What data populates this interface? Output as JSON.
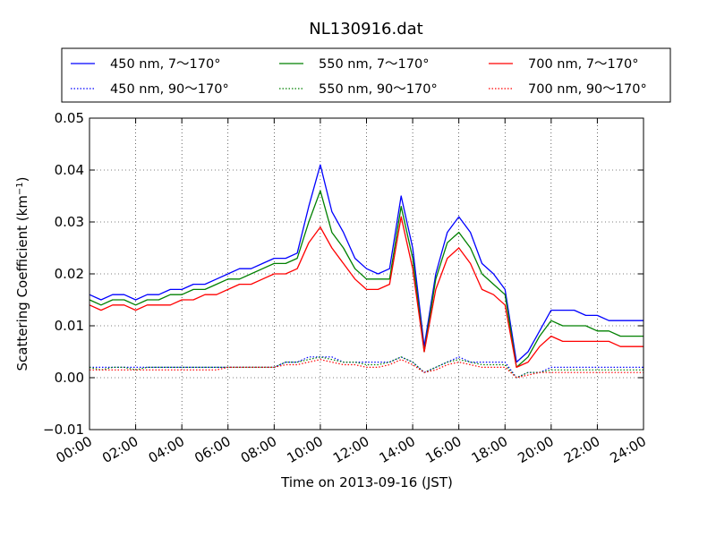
{
  "chart_data": {
    "type": "line",
    "title": "NL130916.dat",
    "xlabel": "Time on 2013-09-16 (JST)",
    "ylabel": "Scattering Coefficient (km",
    "ylabel_sup": "−1",
    "ylabel_tail": ")",
    "xlim": [
      "00:00",
      "24:00"
    ],
    "ylim": [
      -0.01,
      0.05
    ],
    "grid": true,
    "legend_position": "top, outside plot, 3 columns",
    "x_ticks": [
      "00:00",
      "02:00",
      "04:00",
      "06:00",
      "08:00",
      "10:00",
      "12:00",
      "14:00",
      "16:00",
      "18:00",
      "20:00",
      "22:00",
      "24:00"
    ],
    "y_ticks": [
      "−0.01",
      "0.00",
      "0.01",
      "0.02",
      "0.03",
      "0.04",
      "0.05"
    ],
    "x": [
      "00:00",
      "00:30",
      "01:00",
      "01:30",
      "02:00",
      "02:30",
      "03:00",
      "03:30",
      "04:00",
      "04:30",
      "05:00",
      "05:30",
      "06:00",
      "06:30",
      "07:00",
      "07:30",
      "08:00",
      "08:30",
      "09:00",
      "09:30",
      "10:00",
      "10:30",
      "11:00",
      "11:30",
      "12:00",
      "12:30",
      "13:00",
      "13:30",
      "14:00",
      "14:30",
      "15:00",
      "15:30",
      "16:00",
      "16:30",
      "17:00",
      "17:30",
      "18:00",
      "18:30",
      "19:00",
      "19:30",
      "20:00",
      "20:30",
      "21:00",
      "21:30",
      "22:00",
      "22:30",
      "23:00",
      "23:30",
      "24:00"
    ],
    "series": [
      {
        "name": "450 nm, 7～170°",
        "color": "#0000ff",
        "style": "solid",
        "values": [
          0.016,
          0.015,
          0.016,
          0.016,
          0.015,
          0.016,
          0.016,
          0.017,
          0.017,
          0.018,
          0.018,
          0.019,
          0.02,
          0.021,
          0.021,
          0.022,
          0.023,
          0.023,
          0.024,
          0.033,
          0.041,
          0.032,
          0.028,
          0.023,
          0.021,
          0.02,
          0.021,
          0.035,
          0.025,
          0.006,
          0.02,
          0.028,
          0.031,
          0.028,
          0.022,
          0.02,
          0.017,
          0.003,
          0.005,
          0.009,
          0.013,
          0.013,
          0.013,
          0.012,
          0.012,
          0.011,
          0.011,
          0.011,
          0.011
        ]
      },
      {
        "name": "550 nm, 7～170°",
        "color": "#008000",
        "style": "solid",
        "values": [
          0.015,
          0.014,
          0.015,
          0.015,
          0.014,
          0.015,
          0.015,
          0.016,
          0.016,
          0.017,
          0.017,
          0.018,
          0.019,
          0.019,
          0.02,
          0.021,
          0.022,
          0.022,
          0.023,
          0.03,
          0.036,
          0.028,
          0.025,
          0.021,
          0.019,
          0.019,
          0.019,
          0.033,
          0.023,
          0.005,
          0.019,
          0.026,
          0.028,
          0.025,
          0.02,
          0.018,
          0.016,
          0.002,
          0.004,
          0.008,
          0.011,
          0.01,
          0.01,
          0.01,
          0.009,
          0.009,
          0.008,
          0.008,
          0.008
        ]
      },
      {
        "name": "700 nm, 7～170°",
        "color": "#ff0000",
        "style": "solid",
        "values": [
          0.014,
          0.013,
          0.014,
          0.014,
          0.013,
          0.014,
          0.014,
          0.014,
          0.015,
          0.015,
          0.016,
          0.016,
          0.017,
          0.018,
          0.018,
          0.019,
          0.02,
          0.02,
          0.021,
          0.026,
          0.029,
          0.025,
          0.022,
          0.019,
          0.017,
          0.017,
          0.018,
          0.031,
          0.021,
          0.005,
          0.017,
          0.023,
          0.025,
          0.022,
          0.017,
          0.016,
          0.014,
          0.002,
          0.003,
          0.006,
          0.008,
          0.007,
          0.007,
          0.007,
          0.007,
          0.007,
          0.006,
          0.006,
          0.006
        ]
      },
      {
        "name": "450 nm, 90～170°",
        "color": "#0000ff",
        "style": "dotted",
        "values": [
          0.002,
          0.002,
          0.002,
          0.002,
          0.002,
          0.002,
          0.002,
          0.002,
          0.002,
          0.002,
          0.002,
          0.002,
          0.002,
          0.002,
          0.002,
          0.002,
          0.002,
          0.003,
          0.003,
          0.004,
          0.004,
          0.004,
          0.003,
          0.003,
          0.003,
          0.003,
          0.003,
          0.004,
          0.003,
          0.001,
          0.002,
          0.003,
          0.004,
          0.003,
          0.003,
          0.003,
          0.003,
          0.0,
          0.001,
          0.001,
          0.002,
          0.002,
          0.002,
          0.002,
          0.002,
          0.002,
          0.002,
          0.002,
          0.002
        ]
      },
      {
        "name": "550 nm, 90～170°",
        "color": "#008000",
        "style": "dotted",
        "values": [
          0.002,
          0.0015,
          0.002,
          0.002,
          0.0015,
          0.002,
          0.002,
          0.002,
          0.002,
          0.002,
          0.002,
          0.002,
          0.002,
          0.002,
          0.002,
          0.002,
          0.002,
          0.003,
          0.003,
          0.0035,
          0.004,
          0.0035,
          0.003,
          0.003,
          0.0025,
          0.0025,
          0.003,
          0.004,
          0.003,
          0.001,
          0.002,
          0.003,
          0.0035,
          0.003,
          0.0025,
          0.0025,
          0.0025,
          0.0,
          0.001,
          0.001,
          0.0015,
          0.0015,
          0.0015,
          0.0015,
          0.0015,
          0.0015,
          0.0015,
          0.0015,
          0.0015
        ]
      },
      {
        "name": "700 nm, 90～170°",
        "color": "#ff0000",
        "style": "dotted",
        "values": [
          0.0015,
          0.0015,
          0.0015,
          0.0015,
          0.0015,
          0.0015,
          0.0015,
          0.0015,
          0.0015,
          0.0015,
          0.0015,
          0.0015,
          0.002,
          0.002,
          0.002,
          0.002,
          0.002,
          0.0025,
          0.0025,
          0.003,
          0.0035,
          0.003,
          0.0025,
          0.0025,
          0.002,
          0.002,
          0.0025,
          0.0035,
          0.0025,
          0.001,
          0.0015,
          0.0025,
          0.003,
          0.0025,
          0.002,
          0.002,
          0.002,
          0.0,
          0.0005,
          0.001,
          0.001,
          0.001,
          0.001,
          0.001,
          0.001,
          0.001,
          0.001,
          0.001,
          0.001
        ]
      }
    ]
  }
}
